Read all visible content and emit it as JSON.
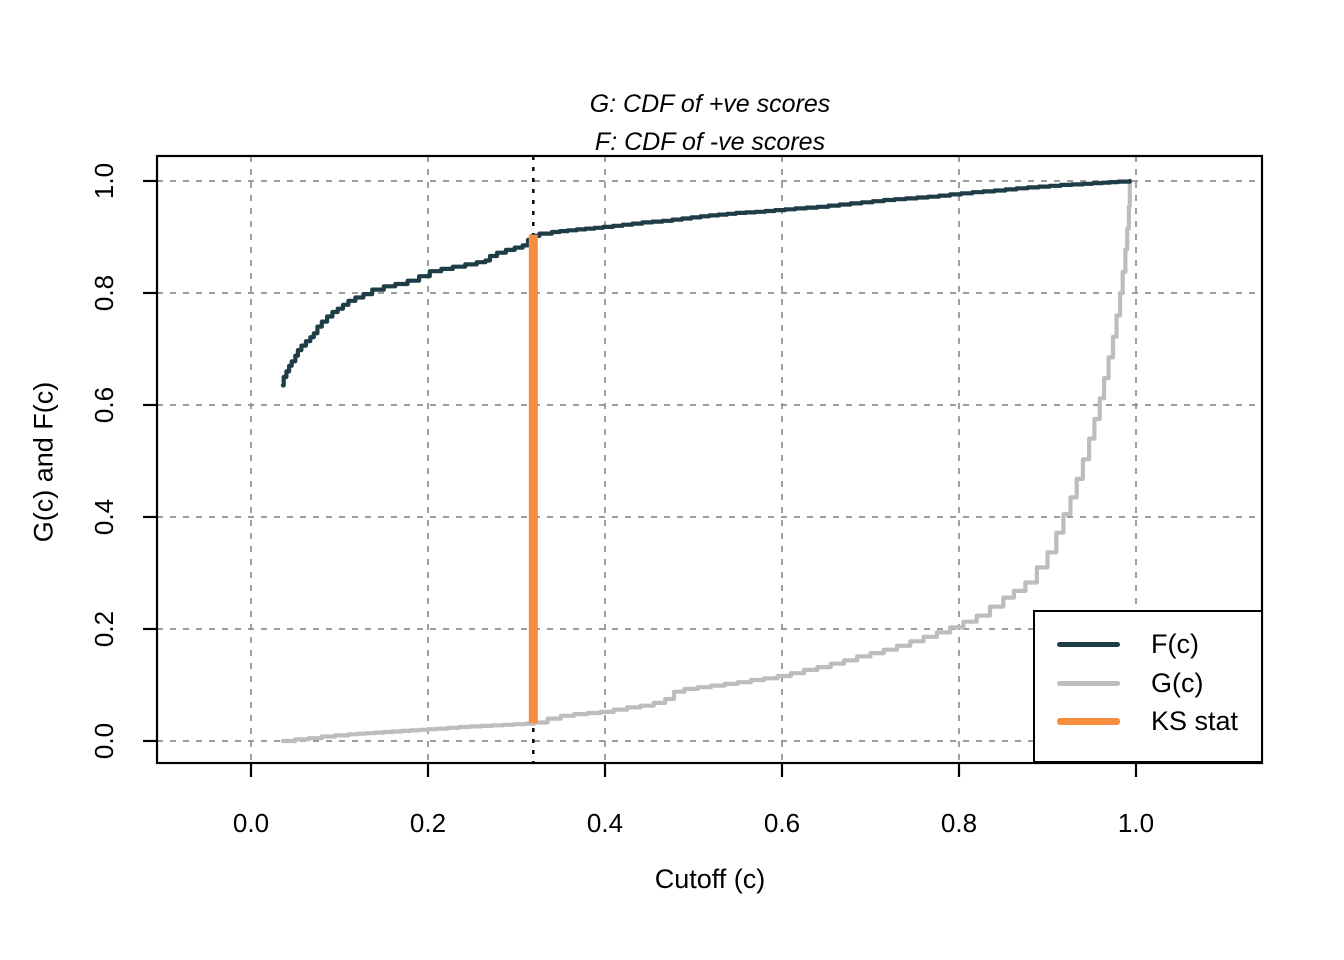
{
  "figure": {
    "title_line1": "G: CDF of +ve scores",
    "title_line2": "F: CDF of -ve scores",
    "x_axis_label": "Cutoff (c)",
    "y_axis_label": "G(c) and F(c)"
  },
  "legend": {
    "position": "bottomright",
    "items": [
      {
        "label": "F(c)",
        "color": "#1e3d47"
      },
      {
        "label": "G(c)",
        "color": "#bdbdbd"
      },
      {
        "label": "KS stat",
        "color": "#f78d3f"
      }
    ]
  },
  "chart_data": {
    "type": "line",
    "title": "G: CDF of +ve scores",
    "subtitle": "F: CDF of -ve scores",
    "xlabel": "Cutoff (c)",
    "ylabel": "G(c) and F(c)",
    "xlim": [
      -0.106,
      1.142
    ],
    "ylim": [
      -0.039,
      1.045
    ],
    "x_ticks": [
      "0.0",
      "0.2",
      "0.4",
      "0.6",
      "0.8",
      "1.0"
    ],
    "x_tick_values": [
      0.0,
      0.2,
      0.4,
      0.6,
      0.8,
      1.0
    ],
    "y_ticks": [
      "0.0",
      "0.2",
      "0.4",
      "0.6",
      "0.8",
      "1.0"
    ],
    "y_tick_values": [
      0.0,
      0.2,
      0.4,
      0.6,
      0.8,
      1.0
    ],
    "grid": "dashed",
    "grid_color": "#8f8f8f",
    "curve_style": "ecdf-steps",
    "series": [
      {
        "name": "F(c)",
        "color": "#1e3d47",
        "points": [
          [
            0.036,
            0.635
          ],
          [
            0.037,
            0.65
          ],
          [
            0.04,
            0.66
          ],
          [
            0.043,
            0.67
          ],
          [
            0.046,
            0.678
          ],
          [
            0.05,
            0.688
          ],
          [
            0.053,
            0.698
          ],
          [
            0.057,
            0.706
          ],
          [
            0.062,
            0.714
          ],
          [
            0.067,
            0.721
          ],
          [
            0.071,
            0.728
          ],
          [
            0.075,
            0.74
          ],
          [
            0.08,
            0.749
          ],
          [
            0.086,
            0.758
          ],
          [
            0.092,
            0.766
          ],
          [
            0.098,
            0.772
          ],
          [
            0.104,
            0.779
          ],
          [
            0.11,
            0.786
          ],
          [
            0.118,
            0.792
          ],
          [
            0.127,
            0.798
          ],
          [
            0.137,
            0.806
          ],
          [
            0.15,
            0.812
          ],
          [
            0.163,
            0.816
          ],
          [
            0.177,
            0.822
          ],
          [
            0.19,
            0.83
          ],
          [
            0.202,
            0.839
          ],
          [
            0.215,
            0.843
          ],
          [
            0.228,
            0.847
          ],
          [
            0.242,
            0.851
          ],
          [
            0.255,
            0.855
          ],
          [
            0.265,
            0.858
          ],
          [
            0.27,
            0.866
          ],
          [
            0.278,
            0.872
          ],
          [
            0.288,
            0.877
          ],
          [
            0.298,
            0.881
          ],
          [
            0.307,
            0.885
          ],
          [
            0.313,
            0.895
          ],
          [
            0.318,
            0.902
          ],
          [
            0.326,
            0.906
          ],
          [
            0.34,
            0.909
          ],
          [
            0.358,
            0.912
          ],
          [
            0.378,
            0.915
          ],
          [
            0.398,
            0.918
          ],
          [
            0.42,
            0.922
          ],
          [
            0.442,
            0.926
          ],
          [
            0.465,
            0.929
          ],
          [
            0.487,
            0.933
          ],
          [
            0.508,
            0.937
          ],
          [
            0.528,
            0.94
          ],
          [
            0.548,
            0.943
          ],
          [
            0.57,
            0.945
          ],
          [
            0.592,
            0.948
          ],
          [
            0.615,
            0.951
          ],
          [
            0.64,
            0.954
          ],
          [
            0.665,
            0.958
          ],
          [
            0.69,
            0.962
          ],
          [
            0.715,
            0.966
          ],
          [
            0.74,
            0.969
          ],
          [
            0.765,
            0.972
          ],
          [
            0.79,
            0.976
          ],
          [
            0.815,
            0.98
          ],
          [
            0.84,
            0.983
          ],
          [
            0.865,
            0.987
          ],
          [
            0.89,
            0.99
          ],
          [
            0.915,
            0.993
          ],
          [
            0.94,
            0.995
          ],
          [
            0.962,
            0.997
          ],
          [
            0.98,
            0.999
          ],
          [
            0.993,
            1.0
          ]
        ]
      },
      {
        "name": "G(c)",
        "color": "#bdbdbd",
        "points": [
          [
            0.036,
            0.0
          ],
          [
            0.05,
            0.003
          ],
          [
            0.065,
            0.005
          ],
          [
            0.08,
            0.008
          ],
          [
            0.095,
            0.01
          ],
          [
            0.11,
            0.012
          ],
          [
            0.13,
            0.014
          ],
          [
            0.15,
            0.016
          ],
          [
            0.17,
            0.018
          ],
          [
            0.19,
            0.02
          ],
          [
            0.21,
            0.022
          ],
          [
            0.235,
            0.025
          ],
          [
            0.26,
            0.027
          ],
          [
            0.285,
            0.029
          ],
          [
            0.31,
            0.031
          ],
          [
            0.32,
            0.033
          ],
          [
            0.335,
            0.04
          ],
          [
            0.35,
            0.045
          ],
          [
            0.365,
            0.048
          ],
          [
            0.38,
            0.05
          ],
          [
            0.395,
            0.052
          ],
          [
            0.41,
            0.056
          ],
          [
            0.425,
            0.06
          ],
          [
            0.44,
            0.063
          ],
          [
            0.455,
            0.068
          ],
          [
            0.468,
            0.075
          ],
          [
            0.478,
            0.088
          ],
          [
            0.49,
            0.093
          ],
          [
            0.505,
            0.096
          ],
          [
            0.52,
            0.099
          ],
          [
            0.535,
            0.102
          ],
          [
            0.55,
            0.105
          ],
          [
            0.565,
            0.109
          ],
          [
            0.58,
            0.112
          ],
          [
            0.595,
            0.116
          ],
          [
            0.61,
            0.121
          ],
          [
            0.625,
            0.127
          ],
          [
            0.64,
            0.132
          ],
          [
            0.655,
            0.138
          ],
          [
            0.67,
            0.144
          ],
          [
            0.685,
            0.151
          ],
          [
            0.7,
            0.157
          ],
          [
            0.715,
            0.163
          ],
          [
            0.73,
            0.17
          ],
          [
            0.745,
            0.178
          ],
          [
            0.76,
            0.186
          ],
          [
            0.775,
            0.194
          ],
          [
            0.79,
            0.203
          ],
          [
            0.805,
            0.213
          ],
          [
            0.82,
            0.224
          ],
          [
            0.835,
            0.24
          ],
          [
            0.85,
            0.256
          ],
          [
            0.862,
            0.268
          ],
          [
            0.875,
            0.283
          ],
          [
            0.888,
            0.31
          ],
          [
            0.9,
            0.337
          ],
          [
            0.91,
            0.372
          ],
          [
            0.918,
            0.405
          ],
          [
            0.926,
            0.435
          ],
          [
            0.933,
            0.468
          ],
          [
            0.94,
            0.503
          ],
          [
            0.947,
            0.54
          ],
          [
            0.953,
            0.575
          ],
          [
            0.959,
            0.612
          ],
          [
            0.964,
            0.648
          ],
          [
            0.969,
            0.685
          ],
          [
            0.974,
            0.722
          ],
          [
            0.978,
            0.76
          ],
          [
            0.982,
            0.8
          ],
          [
            0.985,
            0.838
          ],
          [
            0.988,
            0.878
          ],
          [
            0.99,
            0.915
          ],
          [
            0.992,
            0.955
          ],
          [
            0.993,
            1.0
          ]
        ]
      }
    ],
    "ks_marker": {
      "name": "KS stat",
      "x": 0.319,
      "g_value": 0.032,
      "f_value": 0.904,
      "stat": 0.872,
      "color": "#f78d3f",
      "guide_line": "black-dashed-vertical"
    },
    "legend_position": "bottomright"
  }
}
